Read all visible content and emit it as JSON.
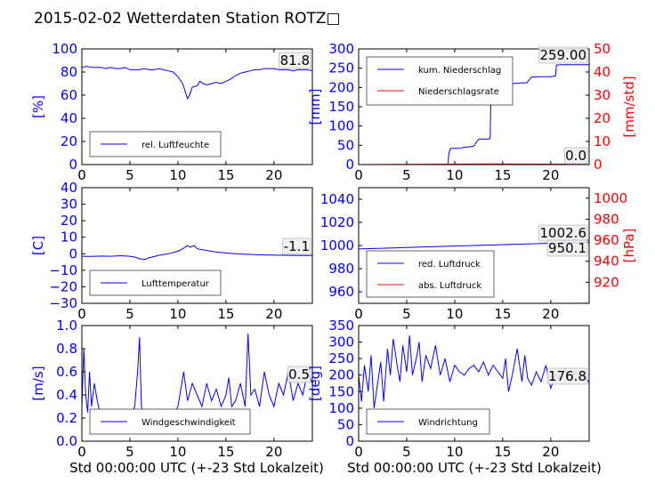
{
  "title": "2015-02-02 Wetterdaten Station ROTZ□",
  "colors": {
    "blue": "#0000ff",
    "red": "#ff0000",
    "black": "#000000"
  },
  "chart_data": [
    {
      "id": "humidity",
      "type": "line",
      "xlim": [
        0,
        24
      ],
      "ylim": [
        0,
        100
      ],
      "xticks": [
        "0",
        "5",
        "10",
        "15",
        "20"
      ],
      "yticks": [
        "0",
        "20",
        "40",
        "60",
        "80",
        "100"
      ],
      "ylabel": "[%]",
      "series": [
        {
          "name": "rel. Luftfeuchte",
          "x": [
            0,
            0.5,
            1,
            1.5,
            2,
            2.5,
            3,
            3.5,
            4,
            4.5,
            5,
            5.5,
            6,
            6.5,
            7,
            7.5,
            8,
            8.5,
            9,
            9.5,
            10,
            10.5,
            10.8,
            11,
            11.2,
            11.5,
            12,
            12.3,
            12.6,
            13,
            13.5,
            14,
            14.5,
            15,
            15.5,
            16,
            16.5,
            17,
            17.5,
            18,
            18.5,
            19,
            19.5,
            20,
            20.5,
            21,
            21.5,
            22,
            22.5,
            23,
            23.5,
            24
          ],
          "y": [
            84,
            85,
            84,
            84,
            84,
            83,
            84,
            83,
            83,
            84,
            82,
            82,
            82,
            83,
            82,
            82,
            83,
            82,
            81,
            80,
            76,
            70,
            62,
            57,
            60,
            67,
            68,
            72,
            70,
            69,
            70,
            71,
            70,
            72,
            74,
            77,
            79,
            80,
            81,
            82,
            82,
            83,
            83,
            83,
            82,
            82,
            82,
            81,
            82,
            82,
            82,
            81
          ]
        }
      ],
      "value_label": "81.8"
    },
    {
      "id": "precipitation",
      "type": "line",
      "xlim": [
        0,
        24
      ],
      "ylim": [
        0,
        300
      ],
      "ylim_right": [
        0,
        50
      ],
      "xticks": [
        "0",
        "5",
        "10",
        "15",
        "20"
      ],
      "yticks": [
        "0",
        "50",
        "100",
        "150",
        "200",
        "250",
        "300"
      ],
      "yticks_right": [
        "0",
        "10",
        "20",
        "30",
        "40",
        "50"
      ],
      "ylabel": "[mm]",
      "ylabel_right": "[mm/std]",
      "series": [
        {
          "name": "kum. Niederschlag",
          "x": [
            0,
            9.3,
            9.4,
            9.6,
            10.5,
            11,
            11.5,
            12,
            12.5,
            12.9,
            13.0,
            13.5,
            13.7,
            13.8,
            14,
            15,
            16,
            17,
            17.5,
            18,
            19,
            20,
            20.5,
            20.6,
            21,
            22,
            23,
            24
          ],
          "y": [
            0,
            0,
            30,
            42,
            42,
            45,
            46,
            48,
            66,
            66,
            66,
            66,
            68,
            209,
            209,
            209,
            210,
            212,
            212,
            227,
            228,
            228,
            230,
            258,
            259,
            259,
            259,
            259
          ]
        },
        {
          "name": "Niederschlagsrate",
          "x": [
            0,
            9.4,
            13.8,
            18,
            20.6,
            24
          ],
          "y": [
            0,
            0.2,
            0.3,
            0.2,
            0.2,
            0
          ]
        }
      ],
      "value_label": "259.00",
      "value_label_right": "0.0"
    },
    {
      "id": "temperature",
      "type": "line",
      "xlim": [
        0,
        24
      ],
      "ylim": [
        -30,
        40
      ],
      "xticks": [
        "0",
        "5",
        "10",
        "15",
        "20"
      ],
      "yticks": [
        "−30",
        "−20",
        "−10",
        "0",
        "10",
        "20",
        "30",
        "40"
      ],
      "ylabel": "[C]",
      "series": [
        {
          "name": "Lufttemperatur",
          "x": [
            0,
            1,
            2,
            3,
            4,
            5,
            5.5,
            6,
            6.5,
            7,
            8,
            9,
            10,
            10.5,
            11,
            11.3,
            11.7,
            12,
            13,
            14,
            15,
            16,
            17,
            18,
            19,
            20,
            21,
            22,
            23,
            24
          ],
          "y": [
            -1.5,
            -1.6,
            -1.4,
            -1.5,
            -1.2,
            -1.5,
            -2,
            -3,
            -3.5,
            -2.5,
            -1,
            0,
            1.5,
            3,
            5,
            4,
            5,
            3,
            2,
            1,
            0.5,
            0,
            -0.3,
            -0.5,
            -0.7,
            -0.8,
            -0.9,
            -1,
            -1.1,
            -1.1
          ]
        }
      ],
      "value_label": "-1.1"
    },
    {
      "id": "pressure",
      "type": "line",
      "xlim": [
        0,
        24
      ],
      "ylim": [
        950,
        1050
      ],
      "ylim_right": [
        900,
        1010
      ],
      "xticks": [
        "0",
        "5",
        "10",
        "15",
        "20"
      ],
      "yticks": [
        "960",
        "980",
        "1000",
        "1020",
        "1040"
      ],
      "yticks_right": [
        "920",
        "940",
        "960",
        "980",
        "1000"
      ],
      "ylabel_right": "[hPa]",
      "series": [
        {
          "name": "red. Luftdruck",
          "x": [
            0,
            2,
            4,
            6,
            8,
            10,
            12,
            14,
            16,
            18,
            20,
            22,
            24
          ],
          "y": [
            997,
            997.5,
            998,
            998.5,
            999,
            999.5,
            1000,
            1000.5,
            1001,
            1001.5,
            1002,
            1002.4,
            1002.6
          ]
        },
        {
          "name": "abs. Luftdruck",
          "x": [
            0,
            4,
            8,
            12,
            16,
            20,
            24
          ],
          "y": [
            945.5,
            946.5,
            947.4,
            948.3,
            949.0,
            949.6,
            950.1
          ]
        }
      ],
      "value_label": "1002.6",
      "value_label_right": "950.1"
    },
    {
      "id": "windspeed",
      "type": "line",
      "xlim": [
        0,
        24
      ],
      "ylim": [
        0,
        1.0
      ],
      "xticks": [
        "0",
        "5",
        "10",
        "15",
        "20"
      ],
      "yticks": [
        "0.0",
        "0.2",
        "0.4",
        "0.6",
        "0.8",
        "1.0"
      ],
      "ylabel": "[m/s]",
      "series": [
        {
          "name": "Windgeschwindigkeit",
          "x": [
            0,
            0.2,
            0.4,
            0.6,
            0.8,
            1,
            1.3,
            1.6,
            2,
            2.5,
            3,
            3.5,
            4,
            4.5,
            5,
            5.5,
            5.8,
            6,
            6.2,
            6.5,
            7,
            7.5,
            8,
            8.5,
            9,
            9.5,
            10,
            10.3,
            10.6,
            11,
            11.5,
            12,
            12.5,
            13,
            13.5,
            14,
            14.5,
            15,
            15.3,
            15.6,
            16,
            16.5,
            17,
            17.3,
            17.6,
            18,
            18.5,
            19,
            19.5,
            20,
            20.5,
            21,
            21.5,
            22,
            22.5,
            23,
            23.5,
            24
          ],
          "y": [
            0.3,
            0.8,
            0.4,
            0.25,
            0.6,
            0.3,
            0.5,
            0.35,
            0.2,
            0.15,
            0.18,
            0.2,
            0.16,
            0.14,
            0.2,
            0.3,
            0.6,
            0.9,
            0.3,
            0.2,
            0.18,
            0.2,
            0.15,
            0.2,
            0.18,
            0.2,
            0.3,
            0.45,
            0.6,
            0.35,
            0.5,
            0.4,
            0.3,
            0.5,
            0.35,
            0.45,
            0.3,
            0.4,
            0.55,
            0.3,
            0.35,
            0.5,
            0.3,
            0.93,
            0.4,
            0.45,
            0.3,
            0.6,
            0.4,
            0.3,
            0.5,
            0.4,
            0.6,
            0.35,
            0.5,
            0.4,
            0.6,
            0.5
          ]
        }
      ],
      "value_label": "0.5"
    },
    {
      "id": "winddirection",
      "type": "line",
      "xlim": [
        0,
        24
      ],
      "ylim": [
        0,
        350
      ],
      "xticks": [
        "0",
        "5",
        "10",
        "15",
        "20"
      ],
      "yticks": [
        "0",
        "50",
        "100",
        "150",
        "200",
        "250",
        "300",
        "350"
      ],
      "ylabel": "[deg]",
      "series": [
        {
          "name": "Windrichtung",
          "x": [
            0,
            0.3,
            0.6,
            1,
            1.3,
            1.6,
            2,
            2.3,
            2.6,
            3,
            3.3,
            3.6,
            4,
            4.3,
            4.6,
            5,
            5.3,
            5.6,
            6,
            6.3,
            6.6,
            7,
            7.5,
            8,
            8.5,
            9,
            9.5,
            10,
            10.5,
            11,
            11.5,
            12,
            12.5,
            13,
            13.5,
            14,
            14.5,
            15,
            15.3,
            15.6,
            16,
            16.5,
            17,
            17.3,
            17.6,
            18,
            18.5,
            19,
            19.5,
            20,
            20.5,
            21,
            21.5,
            22,
            22.5,
            23,
            23.5,
            24
          ],
          "y": [
            200,
            120,
            230,
            150,
            260,
            100,
            180,
            240,
            120,
            280,
            200,
            310,
            230,
            180,
            290,
            210,
            320,
            200,
            250,
            300,
            180,
            260,
            220,
            290,
            200,
            250,
            180,
            230,
            210,
            200,
            220,
            230,
            210,
            240,
            200,
            230,
            210,
            190,
            250,
            150,
            200,
            280,
            180,
            260,
            190,
            170,
            210,
            180,
            230,
            160,
            200,
            190,
            220,
            180,
            210,
            190,
            200,
            177
          ]
        }
      ],
      "value_label": "176.8"
    }
  ],
  "xlabel_left": "Std 00:00:00 UTC (+-23 Std Lokalzeit)",
  "xlabel_right": "Std 00:00:00 UTC (+-23 Std Lokalzeit)"
}
